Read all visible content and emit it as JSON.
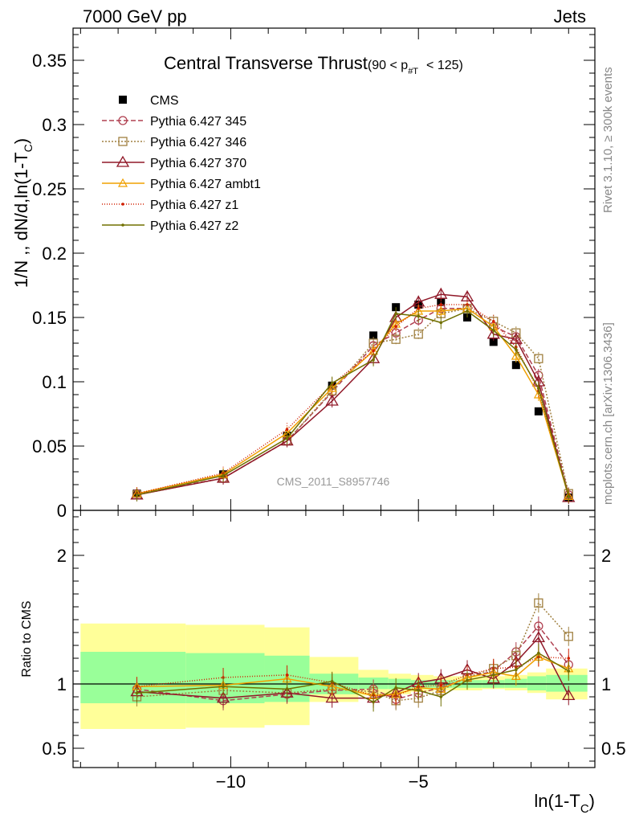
{
  "header": {
    "left": "7000 GeV pp",
    "right": "Jets"
  },
  "side_labels": {
    "rivet": "Rivet 3.1.10, ≥ 300k events",
    "mcplots": "mcplots.cern.ch [arXiv:1306.3436]"
  },
  "chart_data": [
    {
      "type": "line",
      "title": "Central Transverse Thrust",
      "subtitle": "(90 < p",
      "subtitle_sub": "#T",
      "subtitle_end": "< 125)",
      "watermark": "CMS_2011_S8957746",
      "ylabel": "1/N ,, dN/d,ln(1-T",
      "ylabel_sub": "C",
      "ylabel_end": ")",
      "ylim": [
        0,
        0.375
      ],
      "xlim": [
        -14.2,
        -0.3
      ],
      "yticks": [
        0,
        0.05,
        0.1,
        0.15,
        0.2,
        0.25,
        0.3,
        0.35
      ],
      "ytick_labels": [
        "0",
        "0.05",
        "0.1",
        "0.15",
        "0.2",
        "0.25",
        "0.3",
        "0.35"
      ],
      "legend_position": "top-left",
      "x": [
        -12.5,
        -10.2,
        -8.5,
        -7.3,
        -6.2,
        -5.6,
        -5.0,
        -4.4,
        -3.7,
        -3.0,
        -2.4,
        -1.8,
        -1.0
      ],
      "series": [
        {
          "name": "CMS",
          "color": "#000000",
          "marker": "square-filled",
          "dash": "none",
          "values": [
            0.013,
            0.028,
            0.058,
            0.097,
            0.136,
            0.158,
            0.16,
            0.162,
            0.15,
            0.131,
            0.113,
            0.077,
            0.01
          ]
        },
        {
          "name": "Pythia 6.427 345",
          "color": "#b04050",
          "marker": "circle-open",
          "dash": "6,3",
          "values": [
            0.013,
            0.025,
            0.054,
            0.092,
            0.128,
            0.138,
            0.148,
            0.157,
            0.157,
            0.143,
            0.135,
            0.105,
            0.012
          ]
        },
        {
          "name": "Pythia 6.427 346",
          "color": "#a08040",
          "marker": "square-open",
          "dash": "2,2",
          "values": [
            0.012,
            0.025,
            0.054,
            0.093,
            0.13,
            0.133,
            0.137,
            0.153,
            0.157,
            0.147,
            0.138,
            0.118,
            0.013
          ]
        },
        {
          "name": "Pythia 6.427 370",
          "color": "#901828",
          "marker": "triangle-open",
          "dash": "none",
          "values": [
            0.012,
            0.025,
            0.054,
            0.085,
            0.118,
            0.15,
            0.162,
            0.168,
            0.166,
            0.137,
            0.133,
            0.1,
            0.01
          ]
        },
        {
          "name": "Pythia 6.427 ambt1",
          "color": "#f0a000",
          "marker": "triangle-open-small",
          "dash": "none",
          "values": [
            0.013,
            0.028,
            0.06,
            0.095,
            0.124,
            0.145,
            0.155,
            0.155,
            0.157,
            0.143,
            0.12,
            0.09,
            0.011
          ]
        },
        {
          "name": "Pythia 6.427 z1",
          "color": "#d02000",
          "marker": "dot",
          "dash": "1,2",
          "values": [
            0.013,
            0.029,
            0.063,
            0.098,
            0.124,
            0.143,
            0.157,
            0.16,
            0.16,
            0.147,
            0.127,
            0.093,
            0.012
          ]
        },
        {
          "name": "Pythia 6.427 z2",
          "color": "#707000",
          "marker": "dot",
          "dash": "none",
          "values": [
            0.012,
            0.027,
            0.056,
            0.099,
            0.117,
            0.153,
            0.151,
            0.146,
            0.155,
            0.14,
            0.125,
            0.095,
            0.011
          ]
        }
      ]
    },
    {
      "type": "line",
      "ylabel": "Ratio to CMS",
      "xlabel": "ln(1-T",
      "xlabel_sub": "C",
      "xlabel_end": ")",
      "ylim": [
        0.35,
        2.35
      ],
      "xlim": [
        -14.2,
        -0.3
      ],
      "yticks": [
        0.5,
        1,
        2
      ],
      "ytick_labels": [
        "0.5",
        "1",
        "2"
      ],
      "xticks": [
        -10,
        -5
      ],
      "xtick_labels": [
        "−10",
        "−5"
      ],
      "bands": {
        "edges": [
          -14.0,
          -11.2,
          -9.1,
          -7.9,
          -6.6,
          -5.8,
          -5.2,
          -4.6,
          -4.1,
          -3.3,
          -2.7,
          -2.1,
          -1.6,
          -0.5
        ],
        "yellow": [
          [
            0.65,
            1.47
          ],
          [
            0.66,
            1.46
          ],
          [
            0.68,
            1.44
          ],
          [
            0.86,
            1.21
          ],
          [
            0.91,
            1.11
          ],
          [
            0.92,
            1.08
          ],
          [
            0.94,
            1.07
          ],
          [
            0.95,
            1.06
          ],
          [
            0.95,
            1.06
          ],
          [
            0.96,
            1.06
          ],
          [
            0.95,
            1.07
          ],
          [
            0.93,
            1.09
          ],
          [
            0.88,
            1.12
          ]
        ],
        "green": [
          [
            0.85,
            1.25
          ],
          [
            0.85,
            1.24
          ],
          [
            0.86,
            1.22
          ],
          [
            0.92,
            1.08
          ],
          [
            0.96,
            1.05
          ],
          [
            0.96,
            1.04
          ],
          [
            0.97,
            1.03
          ],
          [
            0.97,
            1.03
          ],
          [
            0.97,
            1.03
          ],
          [
            0.97,
            1.03
          ],
          [
            0.97,
            1.04
          ],
          [
            0.95,
            1.06
          ],
          [
            0.94,
            1.07
          ]
        ]
      },
      "series": [
        {
          "name": "Pythia 6.427 345",
          "values": [
            0.96,
            0.87,
            0.92,
            0.95,
            0.96,
            0.88,
            0.93,
            0.97,
            1.05,
            1.1,
            1.25,
            1.45,
            1.15
          ]
        },
        {
          "name": "Pythia 6.427 346",
          "values": [
            0.9,
            0.95,
            0.93,
            0.96,
            0.94,
            0.87,
            0.89,
            0.95,
            1.05,
            1.12,
            1.22,
            1.63,
            1.37
          ]
        },
        {
          "name": "Pythia 6.427 370",
          "values": [
            0.94,
            0.89,
            0.93,
            0.89,
            0.89,
            0.93,
            1.01,
            1.04,
            1.11,
            1.04,
            1.17,
            1.36,
            0.91
          ]
        },
        {
          "name": "Pythia 6.427 ambt1",
          "values": [
            0.98,
            0.99,
            1.04,
            0.98,
            0.91,
            0.92,
            0.97,
            0.96,
            1.05,
            1.09,
            1.06,
            1.21,
            1.12
          ]
        },
        {
          "name": "Pythia 6.427 z1",
          "values": [
            0.98,
            1.05,
            1.07,
            1.01,
            0.91,
            0.91,
            0.98,
            0.99,
            1.07,
            1.12,
            1.13,
            1.21,
            1.2
          ]
        },
        {
          "name": "Pythia 6.427 z2",
          "values": [
            0.93,
            0.98,
            0.96,
            1.02,
            0.86,
            0.97,
            0.95,
            0.9,
            1.03,
            1.07,
            1.11,
            1.24,
            1.1
          ]
        }
      ]
    }
  ]
}
